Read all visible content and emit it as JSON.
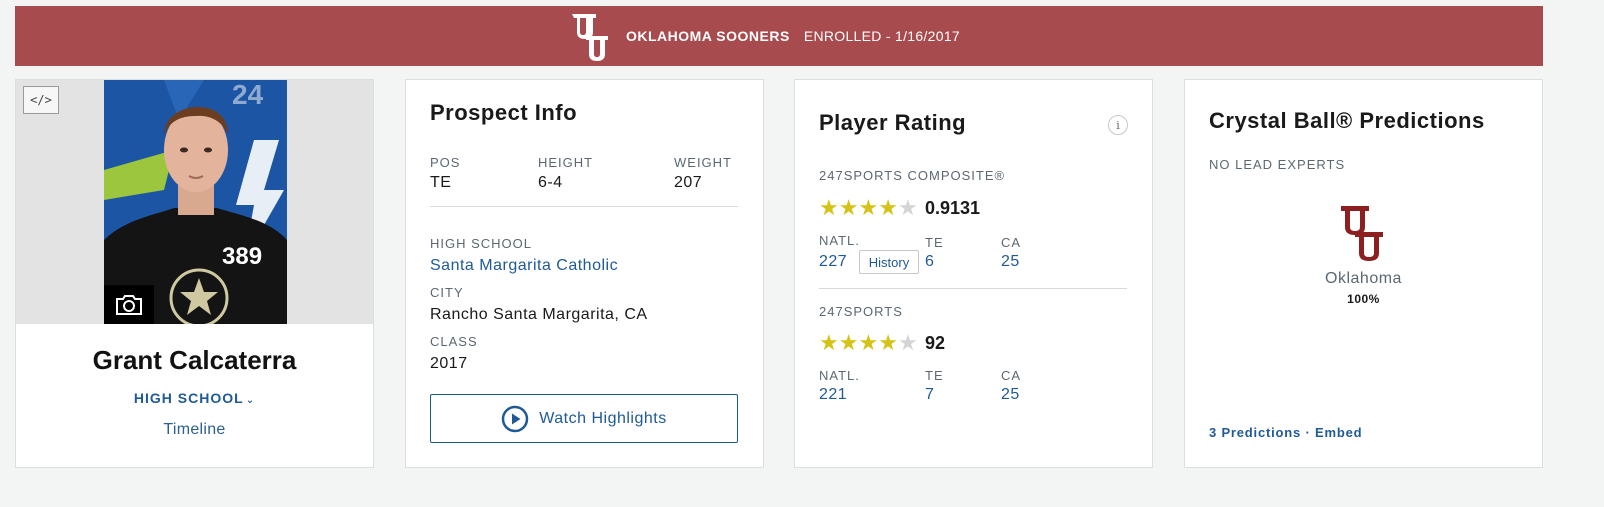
{
  "banner": {
    "team": "OKLAHOMA SOONERS",
    "status": "ENROLLED - 1/16/2017",
    "logo_icon": "oklahoma-ou-logo-icon",
    "logo_color": "#ffffff"
  },
  "player": {
    "name": "Grant Calcaterra",
    "jersey": "389",
    "level_label": "HIGH SCHOOL",
    "timeline_label": "Timeline",
    "embed_label": "</>",
    "camera_icon": "camera-icon"
  },
  "prospect": {
    "title": "Prospect Info",
    "pos_label": "POS",
    "pos_value": "TE",
    "height_label": "HEIGHT",
    "height_value": "6-4",
    "weight_label": "WEIGHT",
    "weight_value": "207",
    "school_label": "HIGH SCHOOL",
    "school_value": "Santa Margarita Catholic",
    "city_label": "CITY",
    "city_value": "Rancho Santa Margarita, CA",
    "class_label": "CLASS",
    "class_value": "2017",
    "watch_label": "Watch Highlights"
  },
  "rating": {
    "title": "Player Rating",
    "info_label": "i",
    "composite_label": "247SPORTS COMPOSITE®",
    "composite_stars": 4,
    "composite_score": "0.9131",
    "composite_natl_label": "NATL.",
    "composite_natl": "227",
    "history_label": "History",
    "composite_pos_label": "TE",
    "composite_pos": "6",
    "composite_state_label": "CA",
    "composite_state": "25",
    "sports_label": "247SPORTS",
    "sports_stars": 4,
    "sports_score": "92",
    "sports_natl_label": "NATL.",
    "sports_natl": "221",
    "sports_pos_label": "TE",
    "sports_pos": "7",
    "sports_state_label": "CA",
    "sports_state": "25",
    "star_color": "#d6c31a"
  },
  "crystal": {
    "title": "Crystal Ball® Predictions",
    "lead_label": "NO LEAD EXPERTS",
    "team": "Oklahoma",
    "pct": "100%",
    "predictions_label": "3 Predictions",
    "separator": "·",
    "embed_label": "Embed",
    "logo_color": "#8c1f1f"
  }
}
